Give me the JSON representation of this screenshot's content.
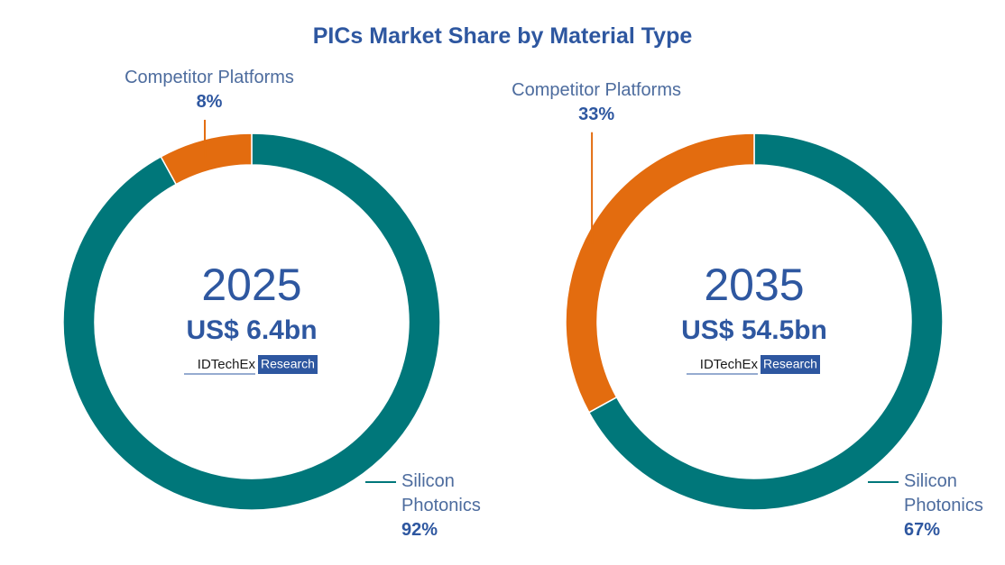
{
  "title": "PICs Market Share by Material Type",
  "chart_data": [
    {
      "type": "pie",
      "donut": true,
      "center_title": "2025",
      "center_subtitle": "US$ 6.4bn",
      "brand": "IDTechEx",
      "badge": "Research",
      "categories": [
        "Silicon Photonics",
        "Competitor Platforms"
      ],
      "values": [
        92,
        8
      ],
      "value_labels": [
        "92%",
        "8%"
      ],
      "colors": [
        "#00777a",
        "#e36c0f"
      ]
    },
    {
      "type": "pie",
      "donut": true,
      "center_title": "2035",
      "center_subtitle": "US$ 54.5bn",
      "brand": "IDTechEx",
      "badge": "Research",
      "categories": [
        "Silicon Photonics",
        "Competitor Platforms"
      ],
      "values": [
        67,
        33
      ],
      "value_labels": [
        "67%",
        "33%"
      ],
      "colors": [
        "#00777a",
        "#e36c0f"
      ]
    }
  ]
}
